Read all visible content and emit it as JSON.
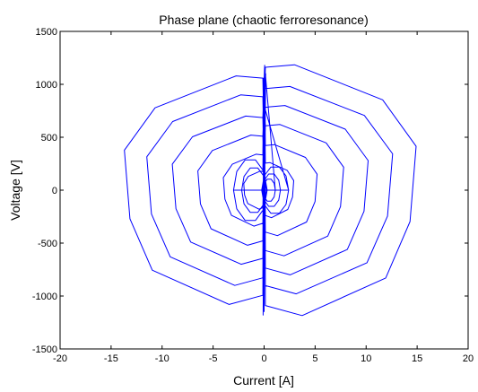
{
  "chart_data": {
    "type": "line",
    "title": "Phase plane (chaotic ferroresonance)",
    "xlabel": "Current [A]",
    "ylabel": "Voltage [V]",
    "xlim": [
      -20,
      20
    ],
    "ylim": [
      -1500,
      1500
    ],
    "xticks": [
      -20,
      -15,
      -10,
      -5,
      0,
      5,
      10,
      15,
      20
    ],
    "yticks": [
      -1500,
      -1000,
      -500,
      0,
      500,
      1000,
      1500
    ],
    "xtick_labels": [
      "-20",
      "-15",
      "-10",
      "-5",
      "0",
      "5",
      "10",
      "15",
      "20"
    ],
    "ytick_labels": [
      "-1500",
      "-1000",
      "-500",
      "0",
      "500",
      "1000",
      "1500"
    ],
    "grid": false,
    "line_color": "#0000ff",
    "axes_color": "#000000",
    "series": [
      {
        "orbits": [
          {
            "a": 14.9,
            "b": 1185
          },
          {
            "a": 13.7,
            "b": 1080
          },
          {
            "a": 12.6,
            "b": 980
          },
          {
            "a": 11.5,
            "b": 900
          },
          {
            "a": 10.2,
            "b": 800
          },
          {
            "a": 9.0,
            "b": 700
          },
          {
            "a": 7.8,
            "b": 620
          },
          {
            "a": 6.5,
            "b": 520
          },
          {
            "a": 5.2,
            "b": 430
          },
          {
            "a": 4.0,
            "b": 340
          },
          {
            "a": 2.9,
            "b": 260
          },
          {
            "a": 2.0,
            "b": 180
          }
        ]
      }
    ]
  }
}
